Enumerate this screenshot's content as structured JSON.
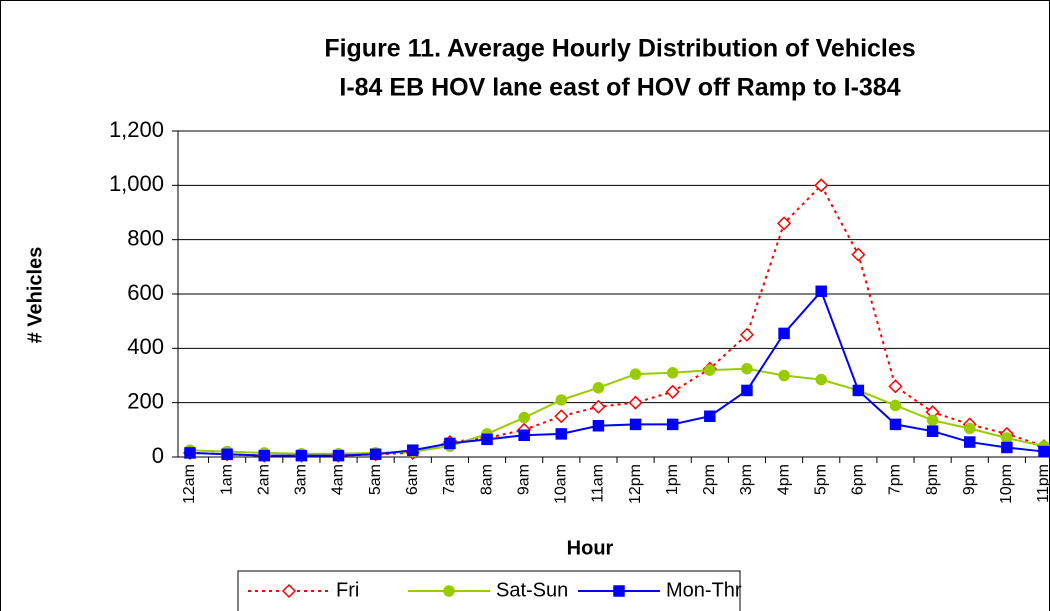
{
  "chart_data": {
    "type": "line",
    "title": "Figure 11. Average Hourly Distribution of Vehicles",
    "subtitle": "I-84 EB HOV lane east of HOV off Ramp to I-384",
    "xlabel": "Hour",
    "ylabel": "# Vehicles",
    "categories": [
      "12am",
      "1am",
      "2am",
      "3am",
      "4am",
      "5am",
      "6am",
      "7am",
      "8am",
      "9am",
      "10am",
      "11am",
      "12pm",
      "1pm",
      "2pm",
      "3pm",
      "4pm",
      "5pm",
      "6pm",
      "7pm",
      "8pm",
      "9pm",
      "10pm",
      "11pm"
    ],
    "series": [
      {
        "name": "Fri",
        "color": "#ff0000",
        "marker": "diamond",
        "line_style": "dotted",
        "values": [
          15,
          10,
          5,
          5,
          5,
          10,
          15,
          55,
          70,
          100,
          150,
          185,
          200,
          240,
          325,
          450,
          860,
          1000,
          745,
          260,
          165,
          120,
          85,
          40
        ]
      },
      {
        "name": "Sat-Sun",
        "color": "#99cc00",
        "marker": "circle",
        "line_style": "solid",
        "values": [
          25,
          20,
          15,
          12,
          12,
          15,
          20,
          40,
          85,
          145,
          210,
          255,
          305,
          310,
          320,
          325,
          300,
          285,
          245,
          190,
          135,
          105,
          70,
          40
        ]
      },
      {
        "name": "Mon-Thr",
        "color": "#0000ff",
        "marker": "square",
        "line_style": "solid",
        "values": [
          15,
          10,
          5,
          5,
          5,
          10,
          25,
          50,
          65,
          80,
          85,
          115,
          120,
          120,
          150,
          245,
          455,
          610,
          245,
          120,
          95,
          55,
          35,
          20
        ]
      }
    ],
    "ylim": [
      0,
      1200
    ],
    "yticks": [
      0,
      200,
      400,
      600,
      800,
      {
        "value": 1000,
        "label": "1,000"
      },
      {
        "value": 1200,
        "label": "1,200"
      }
    ],
    "grid": true,
    "legend": "bottom"
  }
}
